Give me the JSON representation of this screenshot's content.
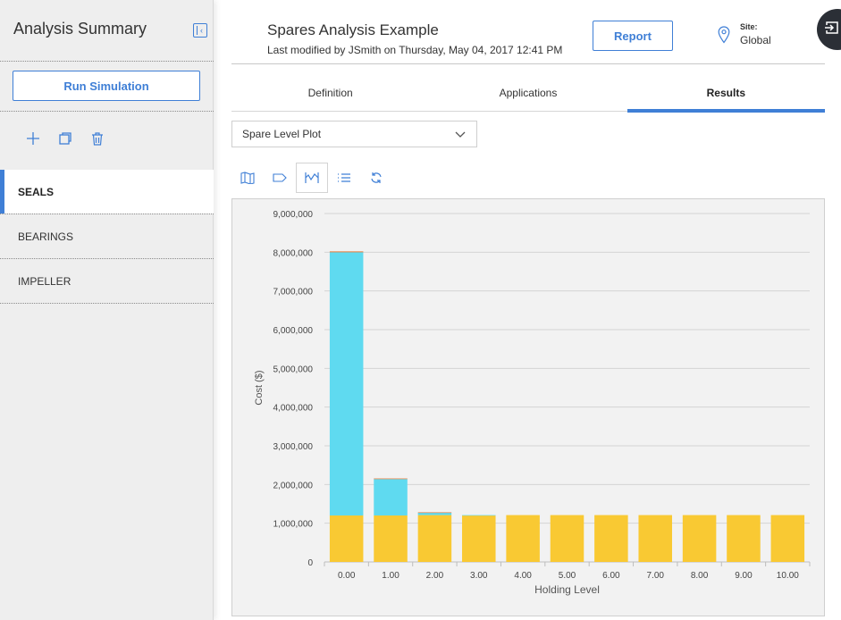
{
  "sidebar": {
    "title": "Analysis Summary",
    "run_button": "Run Simulation",
    "items": [
      {
        "label": "SEALS",
        "active": true
      },
      {
        "label": "BEARINGS",
        "active": false
      },
      {
        "label": "IMPELLER",
        "active": false
      }
    ],
    "toolbar_icons": [
      "add-icon",
      "copy-icon",
      "delete-icon"
    ]
  },
  "header": {
    "title": "Spares Analysis Example",
    "subtitle": "Last modified by JSmith on Thursday, May 04, 2017 12:41 PM",
    "report_button": "Report",
    "site_label": "Site:",
    "site_value": "Global"
  },
  "tabs": [
    {
      "label": "Definition",
      "active": false
    },
    {
      "label": "Applications",
      "active": false
    },
    {
      "label": "Results",
      "active": true
    }
  ],
  "plot_select": {
    "value": "Spare Level Plot"
  },
  "plot_tools": [
    "map-icon",
    "tag-icon",
    "plot-icon",
    "list-icon",
    "refresh-icon"
  ],
  "colors": {
    "accent": "#3f7fd6",
    "series_yellow": "#f9c933",
    "series_cyan": "#5fdaf0",
    "series_orange": "#e86a1e"
  },
  "chart_data": {
    "type": "bar",
    "stacked": true,
    "categories": [
      "0.00",
      "1.00",
      "2.00",
      "3.00",
      "4.00",
      "5.00",
      "6.00",
      "7.00",
      "8.00",
      "9.00",
      "10.00"
    ],
    "series": [
      {
        "color": "#f9c933",
        "values": [
          1200000,
          1200000,
          1210000,
          1200000,
          1210000,
          1210000,
          1210000,
          1210000,
          1210000,
          1210000,
          1210000
        ]
      },
      {
        "color": "#5fdaf0",
        "values": [
          6800000,
          940000,
          60000,
          10000,
          0,
          0,
          0,
          0,
          0,
          0,
          0
        ]
      },
      {
        "color": "#e86a1e",
        "values": [
          20000,
          15000,
          10000,
          0,
          0,
          0,
          0,
          0,
          0,
          0,
          0
        ]
      }
    ],
    "ylim": [
      0,
      9000000
    ],
    "yticks": [
      "0",
      "1,000,000",
      "2,000,000",
      "3,000,000",
      "4,000,000",
      "5,000,000",
      "6,000,000",
      "7,000,000",
      "8,000,000",
      "9,000,000"
    ],
    "xlabel": "Holding Level",
    "ylabel": "Cost ($)",
    "grid": true
  }
}
